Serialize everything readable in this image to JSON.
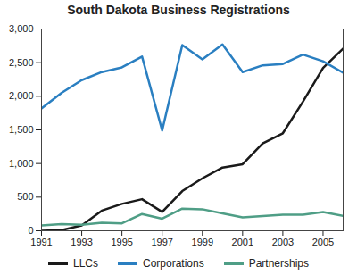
{
  "chart_data": {
    "type": "line",
    "title": "South Dakota Business Registrations",
    "x": [
      1991,
      1992,
      1993,
      1994,
      1995,
      1996,
      1997,
      1998,
      1999,
      2000,
      2001,
      2002,
      2003,
      2004,
      2005,
      2006
    ],
    "series": [
      {
        "name": "LLCs",
        "color": "#1a1a1a",
        "values": [
          0,
          10,
          80,
          300,
          400,
          470,
          280,
          590,
          780,
          940,
          990,
          1300,
          1450,
          1920,
          2420,
          2710
        ]
      },
      {
        "name": "Corporations",
        "color": "#2a7fc1",
        "values": [
          1820,
          2050,
          2240,
          2360,
          2430,
          2590,
          1490,
          2760,
          2550,
          2770,
          2360,
          2460,
          2480,
          2620,
          2520,
          2350
        ]
      },
      {
        "name": "Partnerships",
        "color": "#4f9e86",
        "values": [
          80,
          100,
          90,
          120,
          110,
          250,
          180,
          330,
          320,
          260,
          200,
          220,
          240,
          240,
          280,
          220
        ]
      }
    ],
    "xlim": [
      1991,
      2006
    ],
    "xticks": [
      1991,
      1993,
      1995,
      1997,
      1999,
      2001,
      2003,
      2005
    ],
    "ylim": [
      0,
      3000
    ],
    "yticks": [
      0,
      500,
      {
        "value": 1000,
        "label": "1,000"
      },
      {
        "value": 1500,
        "label": "1,500"
      },
      {
        "value": 2000,
        "label": "2,000"
      },
      {
        "value": 2500,
        "label": "2,500"
      },
      {
        "value": 3000,
        "label": "3,000"
      }
    ],
    "grid": false,
    "legend": "bottom"
  }
}
